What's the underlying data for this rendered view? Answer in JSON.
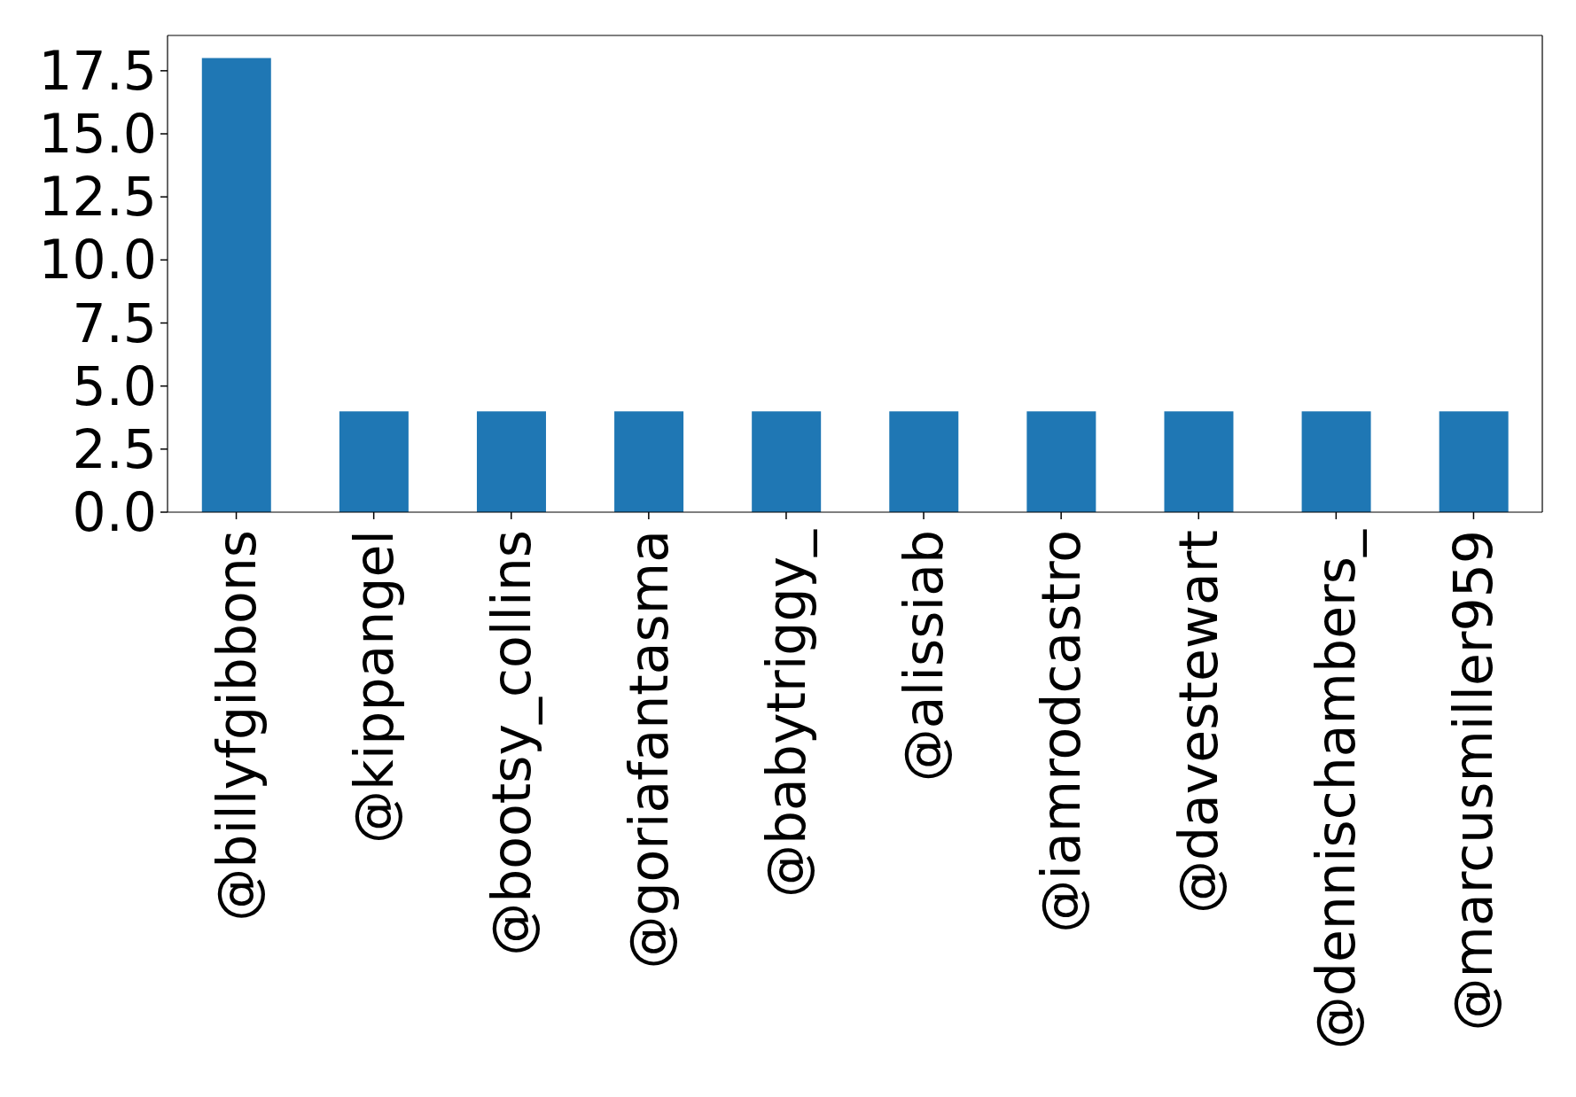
{
  "chart_data": {
    "type": "bar",
    "categories": [
      "@billyfgibbons",
      "@kippangel",
      "@bootsy_collins",
      "@goriafantasma",
      "@babytriggy_",
      "@alissiab",
      "@iamrodcastro",
      "@davestewart",
      "@dennischambers_",
      "@marcusmiller959"
    ],
    "values": [
      18,
      4,
      4,
      4,
      4,
      4,
      4,
      4,
      4,
      4
    ],
    "color": "#1f77b4",
    "ylim": [
      0,
      18.9
    ],
    "yticks": [
      {
        "value": 0,
        "label": "0.0"
      },
      2.5,
      {
        "value": 5,
        "label": "5.0"
      },
      7.5,
      {
        "value": 10,
        "label": "10.0"
      },
      12.5,
      {
        "value": 15,
        "label": "15.0"
      },
      17.5
    ]
  }
}
